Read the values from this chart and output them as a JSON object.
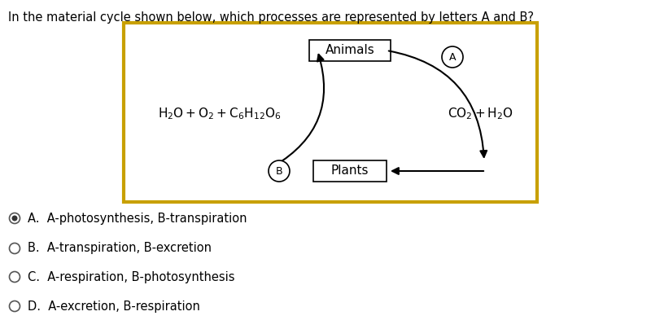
{
  "question_text": "In the material cycle shown below, which processes are represented by letters A and B?",
  "background_color": "#ffffff",
  "box_border_color": "#c8a000",
  "options": [
    {
      "letter": "A",
      "text": "A-photosynthesis, B-transpiration",
      "selected": true
    },
    {
      "letter": "B",
      "text": "A-transpiration, B-excretion",
      "selected": false
    },
    {
      "letter": "C",
      "text": "A-respiration, B-photosynthesis",
      "selected": false
    },
    {
      "letter": "D",
      "text": "A-excretion, B-respiration",
      "selected": false
    }
  ],
  "option_fontsize": 10.5,
  "question_fontsize": 10.5
}
